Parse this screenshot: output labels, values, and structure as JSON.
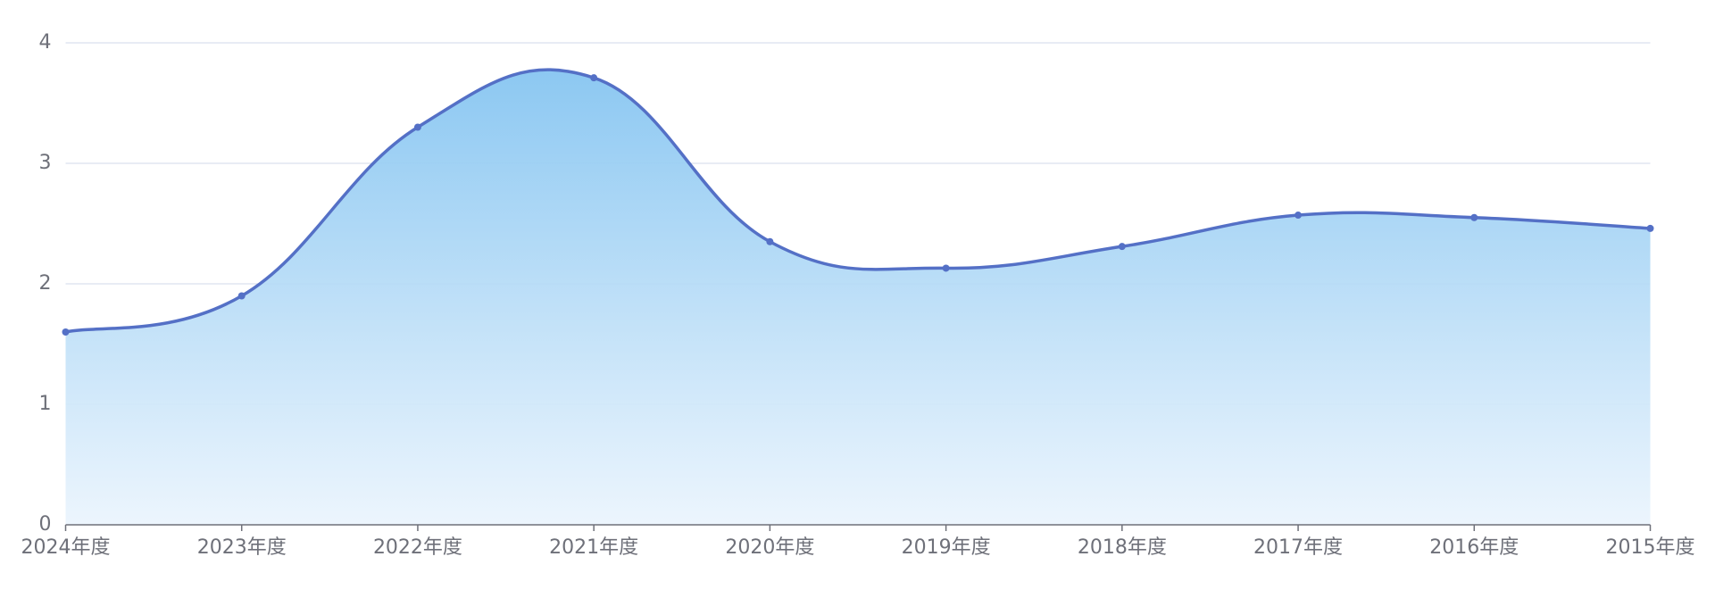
{
  "chart_data": {
    "type": "line",
    "categories": [
      "2024年度",
      "2023年度",
      "2022年度",
      "2021年度",
      "2020年度",
      "2019年度",
      "2018年度",
      "2017年度",
      "2016年度",
      "2015年度"
    ],
    "values": [
      1.6,
      1.9,
      3.3,
      3.71,
      2.35,
      2.13,
      2.31,
      2.57,
      2.55,
      2.46
    ],
    "color": "#5470c6",
    "ylim": [
      0,
      4
    ],
    "yticks": [
      0,
      1,
      2,
      3,
      4
    ],
    "grid": true,
    "smooth": true,
    "area": true
  }
}
